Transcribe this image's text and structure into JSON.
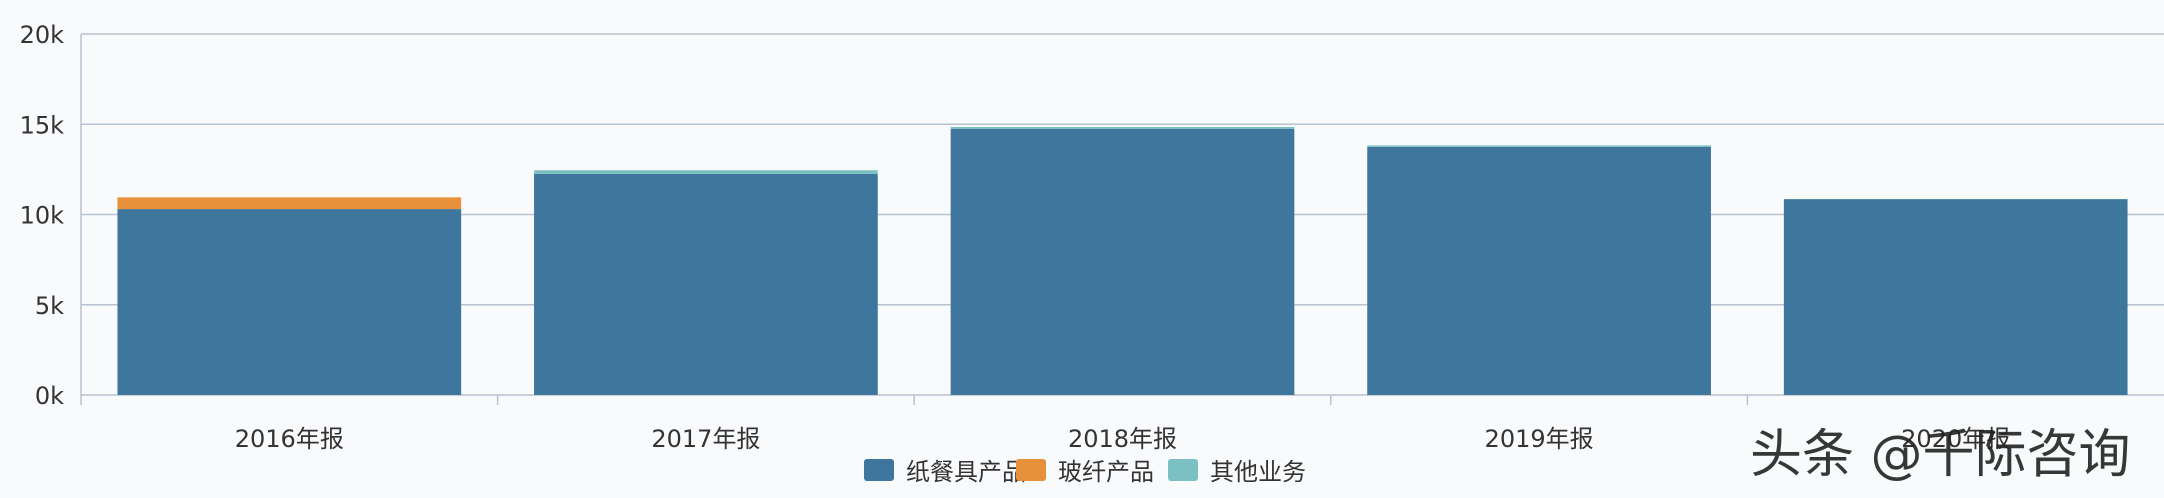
{
  "chart_data": {
    "type": "bar",
    "stacked": true,
    "categories": [
      "2016年报",
      "2017年报",
      "2018年报",
      "2019年报",
      "2020年报"
    ],
    "series": [
      {
        "name": "纸餐具产品",
        "values": [
          10300,
          12250,
          14750,
          13750,
          10850
        ],
        "color": "#3e769e"
      },
      {
        "name": "玻纤产品",
        "values": [
          650,
          0,
          0,
          0,
          0
        ],
        "color": "#e8903a"
      },
      {
        "name": "其他业务",
        "values": [
          0,
          200,
          100,
          80,
          0
        ],
        "color": "#7bc0c3"
      }
    ],
    "y_ticks": [
      "0k",
      "5k",
      "10k",
      "15k",
      "20k"
    ],
    "ylim": [
      0,
      20000
    ],
    "grid": true,
    "legend_position": "bottom-center"
  },
  "watermark": {
    "text": "头条 @千际咨询"
  },
  "colors": {
    "gridline": "#b9c2cf",
    "background": "#f9fafc"
  }
}
